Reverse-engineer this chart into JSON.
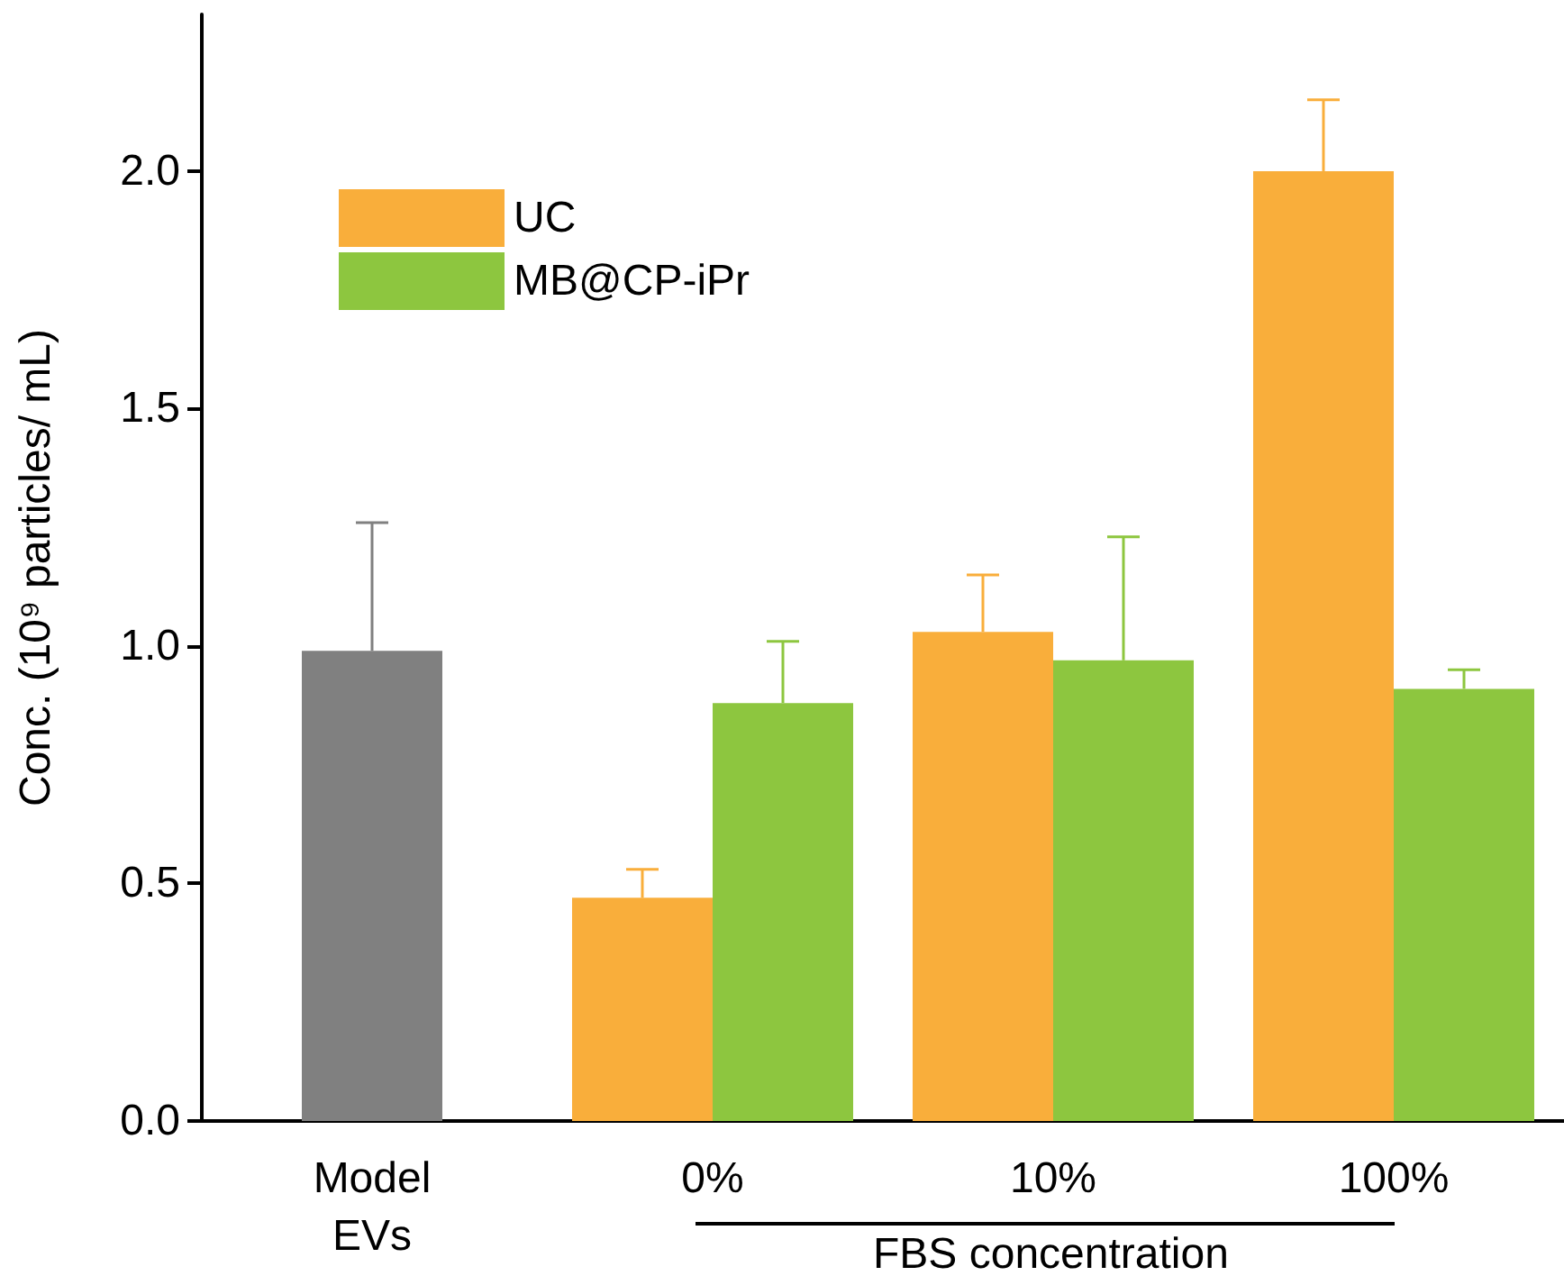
{
  "chart_data": {
    "type": "bar",
    "xlabel": "FBS concentration",
    "ylabel": "Conc. (10⁹ particles/ mL)",
    "categories": [
      "Model\nEVs",
      "0%",
      "10%",
      "100%"
    ],
    "series": [
      {
        "color": "#808080",
        "values": [
          0.99,
          null,
          null,
          null
        ],
        "errors": [
          0.27,
          null,
          null,
          null
        ]
      },
      {
        "name": "UC",
        "color": "#f9ae3b",
        "values": [
          null,
          0.47,
          1.03,
          2.0
        ],
        "errors": [
          null,
          0.06,
          0.12,
          0.15
        ]
      },
      {
        "name": "MB@CP-iPr",
        "color": "#8dc63f",
        "values": [
          null,
          0.88,
          0.97,
          0.91
        ],
        "errors": [
          null,
          0.13,
          0.26,
          0.04
        ]
      }
    ],
    "ylim": [
      0,
      2.33
    ],
    "yticks": [
      {
        "value": 0,
        "label": "0.0"
      },
      {
        "value": 0.5,
        "label": "0.5"
      },
      {
        "value": 1,
        "label": "1.0"
      },
      {
        "value": 1.5,
        "label": "1.5"
      },
      {
        "value": 2,
        "label": "2.0"
      }
    ],
    "grid": false,
    "legend": "top left"
  }
}
